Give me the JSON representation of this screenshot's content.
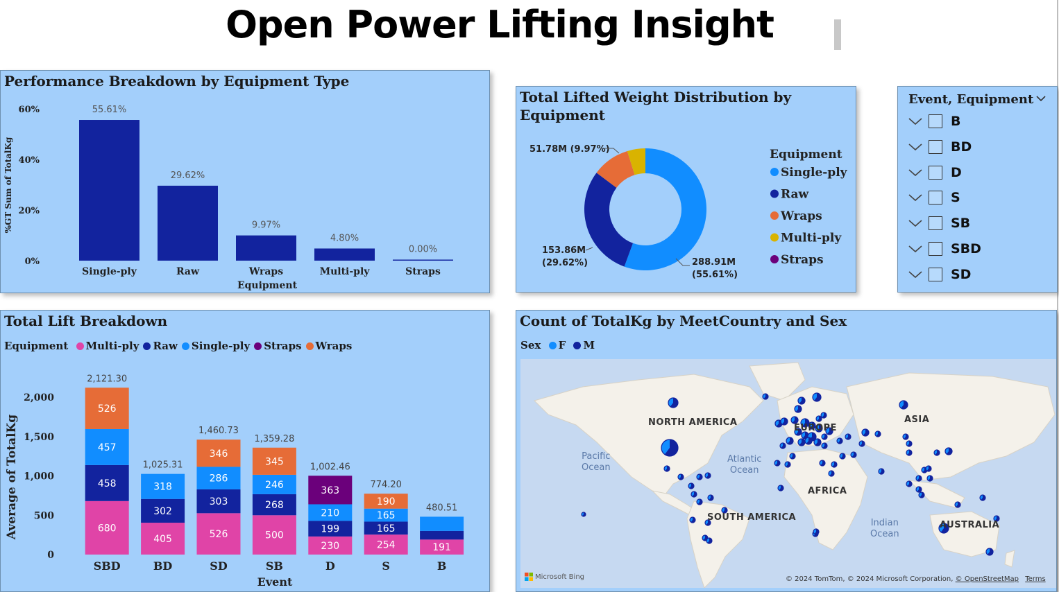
{
  "dashboard_title": "Open Power Lifting Insight",
  "colors": {
    "panel_bg": "#a3cffb",
    "navy": "#12239e",
    "blue": "#118dff",
    "orange": "#e66c37",
    "yellow": "#d9b300",
    "purple": "#6b007b",
    "pink": "#e044a7"
  },
  "chart_data": [
    {
      "type": "bar",
      "title": "Performance Breakdown by Equipment Type",
      "xlabel": "Equipment",
      "ylabel": "%GT Sum of TotalKg",
      "categories": [
        "Single-ply",
        "Raw",
        "Wraps",
        "Multi-ply",
        "Straps"
      ],
      "values": [
        55.61,
        29.62,
        9.97,
        4.8,
        0.0
      ],
      "data_labels": [
        "55.61%",
        "29.62%",
        "9.97%",
        "4.80%",
        "0.00%"
      ],
      "y_ticks": [
        0,
        20,
        40,
        60
      ],
      "y_tick_labels": [
        "0%",
        "20%",
        "40%",
        "60%"
      ],
      "ylim": [
        0,
        60
      ]
    },
    {
      "type": "pie",
      "title": "Total Lifted Weight Distribution by Equipment",
      "legend_title": "Equipment",
      "legend_placement": "right",
      "slices": [
        {
          "name": "Single-ply",
          "value": 288.91,
          "label": "288.91M\n(55.61%)"
        },
        {
          "name": "Raw",
          "value": 153.86,
          "label": "153.86M\n(29.62%)"
        },
        {
          "name": "Wraps",
          "value": 51.78,
          "label": "51.78M (9.97%)"
        },
        {
          "name": "Multi-ply",
          "value": 24.94,
          "label": ""
        },
        {
          "name": "Straps",
          "value": 0.0,
          "label": ""
        }
      ]
    },
    {
      "type": "bar",
      "stacked": true,
      "title": "Total Lift Breakdown",
      "legend_title": "Equipment",
      "legend_placement": "top",
      "xlabel": "Event",
      "ylabel": "Average of TotalKg",
      "categories": [
        "SBD",
        "BD",
        "SD",
        "SB",
        "D",
        "S",
        "B"
      ],
      "totals": [
        "2,121.30",
        "1,025.31",
        "1,460.73",
        "1,359.28",
        "1,002.46",
        "774.20",
        "480.51"
      ],
      "y_ticks": [
        0,
        500,
        1000,
        1500,
        2000
      ],
      "y_tick_labels": [
        "0",
        "500",
        "1,000",
        "1,500",
        "2,000"
      ],
      "ylim": [
        0,
        2200
      ],
      "legend": [
        "Multi-ply",
        "Raw",
        "Single-ply",
        "Straps",
        "Wraps"
      ],
      "series": [
        {
          "name": "Multi-ply",
          "values": [
            680,
            405,
            526,
            500,
            230,
            254,
            191
          ]
        },
        {
          "name": "Raw",
          "values": [
            458,
            302,
            303,
            268,
            199,
            165,
            110
          ]
        },
        {
          "name": "Single-ply",
          "values": [
            457,
            318,
            286,
            246,
            210,
            165,
            180
          ]
        },
        {
          "name": "Straps",
          "values": [
            0,
            0,
            0,
            0,
            363,
            0,
            0
          ]
        },
        {
          "name": "Wraps",
          "values": [
            526,
            0,
            346,
            345,
            0,
            190,
            0
          ]
        }
      ],
      "segment_labels": [
        [
          "680",
          "405",
          "526",
          "500",
          "230",
          "254",
          "191"
        ],
        [
          "458",
          "302",
          "303",
          "268",
          "199",
          "165",
          ""
        ],
        [
          "457",
          "318",
          "286",
          "246",
          "210",
          "165",
          ""
        ],
        [
          "",
          "",
          "",
          "",
          "363",
          "",
          ""
        ],
        [
          "526",
          "",
          "346",
          "345",
          "",
          "190",
          ""
        ]
      ]
    }
  ],
  "slicer": {
    "title": "Event, Equipment",
    "items": [
      "B",
      "BD",
      "D",
      "S",
      "SB",
      "SBD",
      "SD"
    ]
  },
  "map": {
    "title": "Count of TotalKg by MeetCountry and Sex",
    "legend_title": "Sex",
    "legend": [
      "F",
      "M"
    ],
    "continents": [
      "NORTH AMERICA",
      "EUROPE",
      "ASIA",
      "AFRICA",
      "SOUTH AMERICA",
      "AUSTRALIA"
    ],
    "oceans": [
      "Pacific\nOcean",
      "Atlantic\nOcean",
      "Indian\nOcean"
    ],
    "brand": "Microsoft Bing",
    "attribution": "© 2024 TomTom, © 2024 Microsoft Corporation,",
    "osm_link": "© OpenStreetMap",
    "terms": "Terms"
  }
}
